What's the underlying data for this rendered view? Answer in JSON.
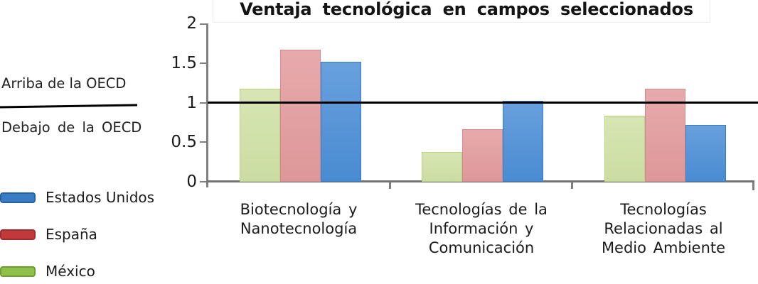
{
  "title": "Ventaja tecnológica en campos seleccionados",
  "annotations": {
    "above_line": "Arriba de la OECD",
    "below_line": "Debajo  de la OECD"
  },
  "legend": [
    {
      "label": "Estados Unidos",
      "color": "#3a7cc4",
      "border": "#27639b"
    },
    {
      "label": "España",
      "color": "#c2393b",
      "border": "#9c2c2e"
    },
    {
      "label": "México",
      "color": "#8ec04a",
      "border": "#6f9d33"
    }
  ],
  "chart_data": {
    "type": "bar",
    "title": "Ventaja tecnológica en campos seleccionados",
    "categories": [
      "Biotecnología  y\nNanotecnología",
      "Tecnologías de la\nInformación  y\nComunicación",
      "Tecnologías\nRelacionadas  al\nMedio Ambiente"
    ],
    "series": [
      {
        "name": "México",
        "values": [
          1.18,
          0.38,
          0.84
        ],
        "fill": "#cfe1a5",
        "border": "#b9d383"
      },
      {
        "name": "España",
        "values": [
          1.68,
          0.67,
          1.18
        ],
        "fill": "#e29a9c",
        "border": "#d78a8e"
      },
      {
        "name": "Estados Unidos",
        "values": [
          1.52,
          1.03,
          0.72
        ],
        "fill": "#4b8ed6",
        "border": "#3a7ec6"
      }
    ],
    "ylabel": "",
    "xlabel": "",
    "ylim": [
      0,
      2
    ],
    "yticks": [
      0,
      0.5,
      1,
      1.5,
      2
    ],
    "ytick_labels": [
      "0",
      "0.5",
      "1",
      "1.5",
      "2"
    ],
    "reference_line": {
      "value": 1,
      "label_above": "Arriba de la OECD",
      "label_below": "Debajo de la OECD",
      "color": "#000000"
    },
    "legend_position": "left",
    "grid": false
  }
}
